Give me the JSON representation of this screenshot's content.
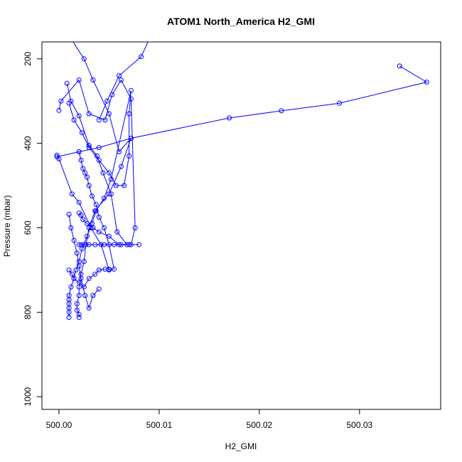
{
  "chart_data": {
    "type": "scatter",
    "title": "ATOM1 North_America H2_GMI",
    "xlabel": "H2_GMI",
    "ylabel": "Pressure (mbar)",
    "xlim": [
      499.9983,
      500.0381
    ],
    "ylim": [
      1030,
      160
    ],
    "y_reversed": true,
    "x_ticks": [
      500.0,
      500.01,
      500.02,
      500.03
    ],
    "x_tick_labels": [
      "500.00",
      "500.01",
      "500.02",
      "500.03"
    ],
    "y_ticks": [
      200,
      400,
      600,
      800,
      1000
    ],
    "y_tick_labels": [
      "200",
      "400",
      "600",
      "800",
      "1000"
    ],
    "grid": false,
    "legend": "none",
    "color": "#0000ff",
    "marker": "open-circle",
    "series": [
      {
        "x": [
          500.001,
          500.0015,
          500.0023,
          500.003,
          500.004,
          500.005,
          500.0057,
          500.0065,
          500.007,
          500.007,
          500.0072,
          500.0052,
          500.0045,
          500.0037,
          500.0033,
          500.0028,
          500.0023,
          500.002,
          500.0017,
          500.0015,
          500.0012,
          500.001,
          500.001,
          500.001,
          500.001,
          500.001,
          500.001
        ],
        "y": [
          305,
          345,
          375,
          410,
          440,
          470,
          500,
          500,
          430,
          330,
          275,
          485,
          530,
          560,
          590,
          620,
          650,
          680,
          700,
          720,
          740,
          760,
          770,
          780,
          790,
          800,
          812
        ]
      },
      {
        "x": [
          500.0012,
          500.0025,
          500.0034,
          500.005,
          500.006,
          500.0072,
          500.0062,
          500.005,
          500.0036,
          500.003,
          500.0027,
          500.0025,
          500.0022,
          500.002,
          500.002,
          500.0018,
          500.0018,
          500.002,
          500.002
        ],
        "y": [
          152,
          200,
          250,
          330,
          420,
          388,
          455,
          520,
          560,
          600,
          640,
          680,
          710,
          740,
          760,
          780,
          795,
          805,
          812
        ]
      },
      {
        "x": [
          499.9998,
          500.0,
          500.0013,
          500.002,
          500.0032,
          500.0042,
          500.005,
          500.0055,
          500.005,
          500.0045,
          500.004,
          500.0037,
          500.0033,
          500.003,
          500.0028,
          500.0026,
          500.0024,
          500.0022,
          500.002
        ],
        "y": [
          428,
          437,
          520,
          540,
          600,
          640,
          700,
          698,
          640,
          600,
          575,
          545,
          525,
          500,
          480,
          470,
          460,
          440,
          420
        ]
      },
      {
        "x": [
          500.0,
          500.0002,
          500.002,
          500.003,
          500.0046,
          500.0053,
          500.0062,
          500.0072,
          500.0076,
          500.0072,
          500.0062,
          500.0055,
          500.0045,
          500.0036,
          500.003,
          500.0025,
          500.0022,
          500.002
        ],
        "y": [
          322,
          300,
          250,
          330,
          345,
          285,
          250,
          295,
          600,
          640,
          640,
          640,
          640,
          640,
          640,
          640,
          640,
          640
        ]
      },
      {
        "x": [
          500.0008,
          500.0012,
          500.002,
          500.003,
          500.0038,
          500.0044,
          500.0052,
          500.0058,
          500.0068,
          500.008,
          500.007,
          500.006,
          500.005,
          500.004,
          500.0034,
          500.0028,
          500.0024,
          500.0022,
          500.002
        ],
        "y": [
          258,
          300,
          335,
          405,
          430,
          470,
          520,
          610,
          640,
          640,
          640,
          640,
          620,
          610,
          600,
          590,
          580,
          570,
          565
        ]
      },
      {
        "x": [
          500.004,
          500.0048,
          500.006,
          500.0082,
          500.009
        ],
        "y": [
          345,
          300,
          240,
          195,
          155
        ]
      },
      {
        "x": [
          499.9998,
          500.002,
          500.004,
          500.0072,
          500.017,
          500.0222,
          500.028,
          500.0367,
          500.034
        ],
        "y": [
          432,
          420,
          410,
          388,
          340,
          323,
          305,
          255,
          217
        ]
      },
      {
        "x": [
          500.001,
          500.0013,
          500.0015,
          500.002,
          500.0025,
          500.003,
          500.0036,
          500.004,
          500.0046,
          500.005
        ],
        "y": [
          700,
          710,
          720,
          730,
          740,
          720,
          710,
          700,
          698,
          698
        ]
      },
      {
        "x": [
          500.001,
          500.0012,
          500.0015,
          500.0018,
          500.002,
          500.0022,
          500.0026,
          500.003,
          500.0034,
          500.004
        ],
        "y": [
          568,
          600,
          630,
          660,
          690,
          720,
          760,
          790,
          760,
          745
        ]
      }
    ]
  }
}
